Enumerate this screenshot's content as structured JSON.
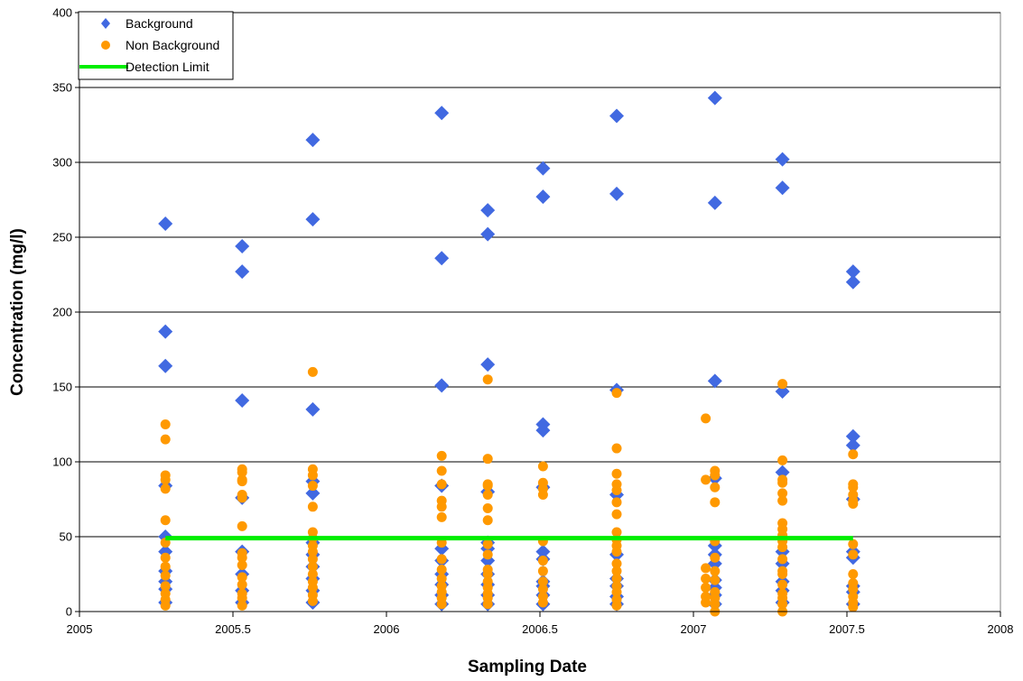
{
  "chart_data": {
    "type": "scatter",
    "title": "",
    "xlabel": "Sampling Date",
    "ylabel": "Concentration (mg/l)",
    "xlim": [
      2005,
      2008
    ],
    "ylim": [
      0,
      400
    ],
    "x_ticks": [
      2005,
      2005.5,
      2006,
      2006.5,
      2007,
      2007.5,
      2008
    ],
    "x_tick_labels": [
      "2005",
      "2005.5",
      "2006",
      "2006.5",
      "2007",
      "2007.5",
      "2008"
    ],
    "y_ticks": [
      0,
      50,
      100,
      150,
      200,
      250,
      300,
      350,
      400
    ],
    "y_tick_labels": [
      "0",
      "50",
      "100",
      "150",
      "200",
      "250",
      "300",
      "350",
      "400"
    ],
    "grid": "horizontal",
    "legend_position": "top-left",
    "series": [
      {
        "name": "Background",
        "marker": "diamond",
        "color": "#4169E1",
        "points": [
          [
            2005.28,
            259
          ],
          [
            2005.28,
            187
          ],
          [
            2005.28,
            164
          ],
          [
            2005.28,
            84
          ],
          [
            2005.28,
            50
          ],
          [
            2005.28,
            40
          ],
          [
            2005.28,
            27
          ],
          [
            2005.28,
            20
          ],
          [
            2005.28,
            15
          ],
          [
            2005.28,
            6
          ],
          [
            2005.53,
            244
          ],
          [
            2005.53,
            227
          ],
          [
            2005.53,
            141
          ],
          [
            2005.53,
            76
          ],
          [
            2005.53,
            40
          ],
          [
            2005.53,
            25
          ],
          [
            2005.53,
            14
          ],
          [
            2005.53,
            6
          ],
          [
            2005.76,
            315
          ],
          [
            2005.76,
            262
          ],
          [
            2005.76,
            135
          ],
          [
            2005.76,
            87
          ],
          [
            2005.76,
            79
          ],
          [
            2005.76,
            46
          ],
          [
            2005.76,
            38
          ],
          [
            2005.76,
            30
          ],
          [
            2005.76,
            22
          ],
          [
            2005.76,
            14
          ],
          [
            2005.76,
            6
          ],
          [
            2006.18,
            333
          ],
          [
            2006.18,
            236
          ],
          [
            2006.18,
            151
          ],
          [
            2006.18,
            84
          ],
          [
            2006.18,
            42
          ],
          [
            2006.18,
            34
          ],
          [
            2006.18,
            25
          ],
          [
            2006.18,
            18
          ],
          [
            2006.18,
            11
          ],
          [
            2006.18,
            5
          ],
          [
            2006.33,
            268
          ],
          [
            2006.33,
            252
          ],
          [
            2006.33,
            165
          ],
          [
            2006.33,
            80
          ],
          [
            2006.33,
            46
          ],
          [
            2006.33,
            42
          ],
          [
            2006.33,
            34
          ],
          [
            2006.33,
            25
          ],
          [
            2006.33,
            18
          ],
          [
            2006.33,
            11
          ],
          [
            2006.33,
            5
          ],
          [
            2006.51,
            296
          ],
          [
            2006.51,
            277
          ],
          [
            2006.51,
            125
          ],
          [
            2006.51,
            121
          ],
          [
            2006.51,
            83
          ],
          [
            2006.51,
            40
          ],
          [
            2006.51,
            35
          ],
          [
            2006.51,
            20
          ],
          [
            2006.51,
            17
          ],
          [
            2006.51,
            11
          ],
          [
            2006.51,
            5
          ],
          [
            2006.75,
            331
          ],
          [
            2006.75,
            279
          ],
          [
            2006.75,
            148
          ],
          [
            2006.75,
            78
          ],
          [
            2006.75,
            38
          ],
          [
            2006.75,
            22
          ],
          [
            2006.75,
            17
          ],
          [
            2006.75,
            10
          ],
          [
            2006.75,
            5
          ],
          [
            2007.07,
            343
          ],
          [
            2007.07,
            273
          ],
          [
            2007.07,
            154
          ],
          [
            2007.07,
            89
          ],
          [
            2007.07,
            44
          ],
          [
            2007.07,
            38
          ],
          [
            2007.07,
            32
          ],
          [
            2007.07,
            21
          ],
          [
            2007.07,
            16
          ],
          [
            2007.07,
            11
          ],
          [
            2007.07,
            5
          ],
          [
            2007.29,
            302
          ],
          [
            2007.29,
            283
          ],
          [
            2007.29,
            147
          ],
          [
            2007.29,
            93
          ],
          [
            2007.29,
            40
          ],
          [
            2007.29,
            32
          ],
          [
            2007.29,
            20
          ],
          [
            2007.29,
            14
          ],
          [
            2007.29,
            6
          ],
          [
            2007.52,
            227
          ],
          [
            2007.52,
            220
          ],
          [
            2007.52,
            117
          ],
          [
            2007.52,
            111
          ],
          [
            2007.52,
            75
          ],
          [
            2007.52,
            40
          ],
          [
            2007.52,
            36
          ],
          [
            2007.52,
            17
          ],
          [
            2007.52,
            13
          ],
          [
            2007.52,
            5
          ]
        ]
      },
      {
        "name": "Non Background",
        "marker": "circle",
        "color": "#FF9900",
        "points": [
          [
            2005.28,
            125
          ],
          [
            2005.28,
            115
          ],
          [
            2005.28,
            91
          ],
          [
            2005.28,
            88
          ],
          [
            2005.28,
            82
          ],
          [
            2005.28,
            61
          ],
          [
            2005.28,
            46
          ],
          [
            2005.28,
            36
          ],
          [
            2005.28,
            30
          ],
          [
            2005.28,
            24
          ],
          [
            2005.28,
            17
          ],
          [
            2005.28,
            12
          ],
          [
            2005.28,
            8
          ],
          [
            2005.28,
            4
          ],
          [
            2005.53,
            95
          ],
          [
            2005.53,
            93
          ],
          [
            2005.53,
            88
          ],
          [
            2005.53,
            87
          ],
          [
            2005.53,
            78
          ],
          [
            2005.53,
            76
          ],
          [
            2005.53,
            57
          ],
          [
            2005.53,
            39
          ],
          [
            2005.53,
            36
          ],
          [
            2005.53,
            31
          ],
          [
            2005.53,
            23
          ],
          [
            2005.53,
            18
          ],
          [
            2005.53,
            12
          ],
          [
            2005.53,
            9
          ],
          [
            2005.53,
            4
          ],
          [
            2005.76,
            160
          ],
          [
            2005.76,
            95
          ],
          [
            2005.76,
            91
          ],
          [
            2005.76,
            84
          ],
          [
            2005.76,
            70
          ],
          [
            2005.76,
            53
          ],
          [
            2005.76,
            49
          ],
          [
            2005.76,
            44
          ],
          [
            2005.76,
            40
          ],
          [
            2005.76,
            35
          ],
          [
            2005.76,
            30
          ],
          [
            2005.76,
            25
          ],
          [
            2005.76,
            20
          ],
          [
            2005.76,
            16
          ],
          [
            2005.76,
            11
          ],
          [
            2005.76,
            7
          ],
          [
            2006.18,
            104
          ],
          [
            2006.18,
            94
          ],
          [
            2006.18,
            85
          ],
          [
            2006.18,
            74
          ],
          [
            2006.18,
            70
          ],
          [
            2006.18,
            63
          ],
          [
            2006.18,
            46
          ],
          [
            2006.18,
            35
          ],
          [
            2006.18,
            28
          ],
          [
            2006.18,
            22
          ],
          [
            2006.18,
            17
          ],
          [
            2006.18,
            13
          ],
          [
            2006.18,
            9
          ],
          [
            2006.18,
            5
          ],
          [
            2006.33,
            155
          ],
          [
            2006.33,
            102
          ],
          [
            2006.33,
            85
          ],
          [
            2006.33,
            84
          ],
          [
            2006.33,
            78
          ],
          [
            2006.33,
            69
          ],
          [
            2006.33,
            61
          ],
          [
            2006.33,
            45
          ],
          [
            2006.33,
            38
          ],
          [
            2006.33,
            28
          ],
          [
            2006.33,
            25
          ],
          [
            2006.33,
            20
          ],
          [
            2006.33,
            16
          ],
          [
            2006.33,
            12
          ],
          [
            2006.33,
            9
          ],
          [
            2006.33,
            5
          ],
          [
            2006.51,
            97
          ],
          [
            2006.51,
            86
          ],
          [
            2006.51,
            82
          ],
          [
            2006.51,
            78
          ],
          [
            2006.51,
            47
          ],
          [
            2006.51,
            34
          ],
          [
            2006.51,
            27
          ],
          [
            2006.51,
            20
          ],
          [
            2006.51,
            15
          ],
          [
            2006.51,
            10
          ],
          [
            2006.51,
            6
          ],
          [
            2006.75,
            146
          ],
          [
            2006.75,
            109
          ],
          [
            2006.75,
            92
          ],
          [
            2006.75,
            85
          ],
          [
            2006.75,
            81
          ],
          [
            2006.75,
            73
          ],
          [
            2006.75,
            65
          ],
          [
            2006.75,
            53
          ],
          [
            2006.75,
            48
          ],
          [
            2006.75,
            44
          ],
          [
            2006.75,
            40
          ],
          [
            2006.75,
            32
          ],
          [
            2006.75,
            27
          ],
          [
            2006.75,
            22
          ],
          [
            2006.75,
            17
          ],
          [
            2006.75,
            13
          ],
          [
            2006.75,
            8
          ],
          [
            2006.75,
            4
          ],
          [
            2007.04,
            129
          ],
          [
            2007.04,
            88
          ],
          [
            2007.04,
            29
          ],
          [
            2007.04,
            22
          ],
          [
            2007.04,
            16
          ],
          [
            2007.04,
            10
          ],
          [
            2007.04,
            6
          ],
          [
            2007.07,
            94
          ],
          [
            2007.07,
            91
          ],
          [
            2007.07,
            83
          ],
          [
            2007.07,
            73
          ],
          [
            2007.07,
            47
          ],
          [
            2007.07,
            36
          ],
          [
            2007.07,
            27
          ],
          [
            2007.07,
            21
          ],
          [
            2007.07,
            13
          ],
          [
            2007.07,
            9
          ],
          [
            2007.07,
            5
          ],
          [
            2007.07,
            0
          ],
          [
            2007.29,
            152
          ],
          [
            2007.29,
            101
          ],
          [
            2007.29,
            88
          ],
          [
            2007.29,
            86
          ],
          [
            2007.29,
            79
          ],
          [
            2007.29,
            74
          ],
          [
            2007.29,
            59
          ],
          [
            2007.29,
            55
          ],
          [
            2007.29,
            51
          ],
          [
            2007.29,
            47
          ],
          [
            2007.29,
            43
          ],
          [
            2007.29,
            35
          ],
          [
            2007.29,
            27
          ],
          [
            2007.29,
            25
          ],
          [
            2007.29,
            18
          ],
          [
            2007.29,
            12
          ],
          [
            2007.29,
            9
          ],
          [
            2007.29,
            5
          ],
          [
            2007.29,
            0
          ],
          [
            2007.52,
            105
          ],
          [
            2007.52,
            85
          ],
          [
            2007.52,
            83
          ],
          [
            2007.52,
            78
          ],
          [
            2007.52,
            74
          ],
          [
            2007.52,
            72
          ],
          [
            2007.52,
            45
          ],
          [
            2007.52,
            38
          ],
          [
            2007.52,
            25
          ],
          [
            2007.52,
            19
          ],
          [
            2007.52,
            15
          ],
          [
            2007.52,
            10
          ],
          [
            2007.52,
            6
          ],
          [
            2007.52,
            3
          ]
        ]
      },
      {
        "name": "Detection Limit",
        "marker": "line",
        "color": "#00EE00",
        "x": [
          2005.28,
          2007.52
        ],
        "y": [
          49,
          49
        ]
      }
    ]
  }
}
